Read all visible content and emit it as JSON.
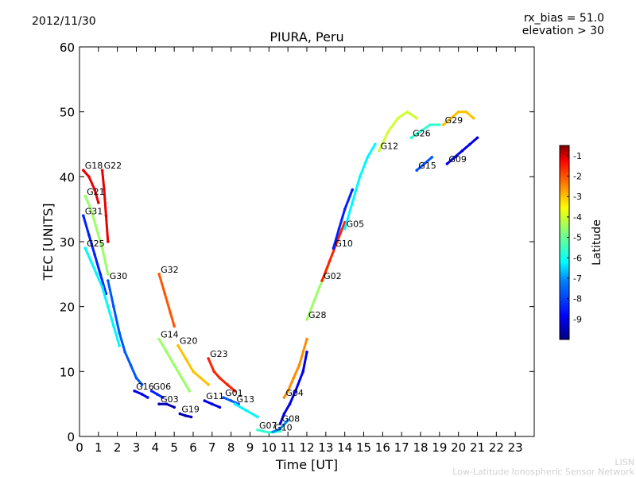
{
  "header": {
    "date": "2012/11/30",
    "rx_bias": "rx_bias = 51.0",
    "elevation": "elevation > 30"
  },
  "footer": {
    "credit_line1": "LISN",
    "credit_line2": "Low-Latitude Ionospheric Sensor Network"
  },
  "chart_data": {
    "type": "scatter",
    "title": "PIURA, Peru",
    "xlabel": "Time [UT]",
    "ylabel": "TEC [UNITS]",
    "xlim": [
      0,
      24
    ],
    "ylim": [
      0,
      60
    ],
    "x_ticks": [
      "0",
      "1",
      "2",
      "3",
      "4",
      "5",
      "6",
      "7",
      "8",
      "9",
      "10",
      "11",
      "12",
      "13",
      "14",
      "15",
      "16",
      "17",
      "18",
      "19",
      "20",
      "21",
      "22",
      "23"
    ],
    "y_ticks": [
      "0",
      "10",
      "20",
      "30",
      "40",
      "50",
      "60"
    ],
    "grid": false,
    "colorbar": {
      "label": "Latitude",
      "range": [
        -10,
        -0.5
      ],
      "ticks": [
        "-1",
        "-2",
        "-3",
        "-4",
        "-5",
        "-6",
        "-7",
        "-8",
        "-9"
      ],
      "colors": [
        "#00007f",
        "#0000ff",
        "#007fff",
        "#00ffff",
        "#7fff7f",
        "#ffff00",
        "#ff7f00",
        "#ff0000",
        "#7f0000"
      ]
    },
    "series": [
      {
        "name": "G18",
        "lat": -1.5,
        "points": [
          [
            0.2,
            41
          ],
          [
            0.5,
            40
          ],
          [
            0.8,
            38
          ],
          [
            1.0,
            36
          ]
        ]
      },
      {
        "name": "G22",
        "lat": -1.5,
        "points": [
          [
            1.2,
            41
          ],
          [
            1.3,
            38
          ],
          [
            1.4,
            34
          ],
          [
            1.5,
            30
          ]
        ]
      },
      {
        "name": "G21",
        "lat": -5.0,
        "points": [
          [
            0.3,
            37
          ],
          [
            0.6,
            35
          ],
          [
            0.9,
            32
          ],
          [
            1.2,
            29
          ],
          [
            1.5,
            25
          ]
        ]
      },
      {
        "name": "G31",
        "lat": -8.5,
        "points": [
          [
            0.2,
            34
          ],
          [
            0.5,
            31
          ],
          [
            0.8,
            28
          ],
          [
            1.1,
            25
          ],
          [
            1.4,
            22
          ]
        ]
      },
      {
        "name": "G25",
        "lat": -6.5,
        "points": [
          [
            0.3,
            29
          ],
          [
            0.6,
            27
          ],
          [
            0.9,
            25
          ],
          [
            1.2,
            23
          ],
          [
            1.5,
            20
          ],
          [
            1.8,
            17
          ],
          [
            2.1,
            14
          ]
        ]
      },
      {
        "name": "G30",
        "lat": -8.0,
        "points": [
          [
            1.5,
            24
          ],
          [
            1.8,
            20
          ],
          [
            2.1,
            16
          ],
          [
            2.4,
            13
          ],
          [
            2.7,
            11
          ],
          [
            3.0,
            9
          ],
          [
            3.3,
            8
          ]
        ]
      },
      {
        "name": "G32",
        "lat": -2.5,
        "points": [
          [
            4.2,
            25
          ],
          [
            4.5,
            22
          ],
          [
            4.8,
            19
          ],
          [
            5.0,
            17
          ]
        ]
      },
      {
        "name": "G14",
        "lat": -5.0,
        "points": [
          [
            4.2,
            15
          ],
          [
            4.6,
            13
          ],
          [
            5.0,
            11
          ],
          [
            5.4,
            9
          ],
          [
            5.8,
            7
          ]
        ]
      },
      {
        "name": "G20",
        "lat": -3.5,
        "points": [
          [
            5.2,
            14
          ],
          [
            5.6,
            12
          ],
          [
            6.0,
            10
          ],
          [
            6.4,
            9
          ],
          [
            6.8,
            8
          ]
        ]
      },
      {
        "name": "G23",
        "lat": -2.0,
        "points": [
          [
            6.8,
            12
          ],
          [
            7.1,
            10
          ],
          [
            7.4,
            9
          ],
          [
            7.8,
            8
          ],
          [
            8.2,
            7
          ]
        ]
      },
      {
        "name": "G16",
        "lat": -9.0,
        "points": [
          [
            2.9,
            7
          ],
          [
            3.3,
            6.5
          ],
          [
            3.6,
            6
          ]
        ]
      },
      {
        "name": "G06",
        "lat": -8.5,
        "points": [
          [
            3.8,
            7
          ],
          [
            4.1,
            6.5
          ],
          [
            4.4,
            6
          ]
        ]
      },
      {
        "name": "G03",
        "lat": -9.5,
        "points": [
          [
            4.2,
            5
          ],
          [
            4.6,
            5
          ],
          [
            5.0,
            4.5
          ]
        ]
      },
      {
        "name": "G19",
        "lat": -9.5,
        "points": [
          [
            5.3,
            3.5
          ],
          [
            5.6,
            3.2
          ],
          [
            5.9,
            3
          ]
        ]
      },
      {
        "name": "G11",
        "lat": -9.0,
        "points": [
          [
            6.6,
            5.5
          ],
          [
            7.0,
            5
          ],
          [
            7.4,
            4.5
          ]
        ]
      },
      {
        "name": "G01",
        "lat": -8.0,
        "points": [
          [
            7.6,
            6
          ],
          [
            8.0,
            5.5
          ],
          [
            8.4,
            5
          ]
        ]
      },
      {
        "name": "G13",
        "lat": -6.5,
        "points": [
          [
            8.2,
            5
          ],
          [
            8.8,
            4
          ],
          [
            9.4,
            3
          ]
        ]
      },
      {
        "name": "G07",
        "lat": -6.0,
        "points": [
          [
            9.4,
            1
          ],
          [
            10.0,
            0.6
          ],
          [
            10.6,
            0.8
          ]
        ]
      },
      {
        "name": "G10",
        "lat": -7.5,
        "points": [
          [
            10.2,
            0.7
          ],
          [
            10.6,
            1.2
          ],
          [
            11.0,
            2.5
          ]
        ]
      },
      {
        "name": "G08",
        "lat": -9.0,
        "points": [
          [
            10.6,
            2
          ],
          [
            10.8,
            3.5
          ],
          [
            11.1,
            5
          ],
          [
            11.4,
            7
          ],
          [
            11.8,
            10
          ],
          [
            12.0,
            13
          ]
        ]
      },
      {
        "name": "G04",
        "lat": -3.0,
        "points": [
          [
            10.8,
            6
          ],
          [
            11.0,
            7
          ],
          [
            11.3,
            9
          ],
          [
            11.6,
            11
          ],
          [
            12.0,
            15
          ]
        ]
      },
      {
        "name": "G28",
        "lat": -5.0,
        "points": [
          [
            12.0,
            18
          ],
          [
            12.4,
            21
          ],
          [
            12.8,
            24
          ],
          [
            13.1,
            26
          ]
        ]
      },
      {
        "name": "G02",
        "lat": -2.0,
        "points": [
          [
            12.8,
            24
          ],
          [
            13.2,
            27
          ],
          [
            13.6,
            30
          ],
          [
            14.0,
            33
          ]
        ]
      },
      {
        "name": "G10",
        "lat": -8.5,
        "points": [
          [
            13.4,
            29
          ],
          [
            13.7,
            32
          ],
          [
            14.0,
            35
          ],
          [
            14.4,
            38
          ]
        ]
      },
      {
        "name": "G05",
        "lat": -6.5,
        "points": [
          [
            14.0,
            32
          ],
          [
            14.4,
            36
          ],
          [
            14.8,
            40
          ],
          [
            15.2,
            43
          ],
          [
            15.6,
            45
          ]
        ]
      },
      {
        "name": "G12",
        "lat": -4.5,
        "points": [
          [
            15.8,
            44
          ],
          [
            16.3,
            47
          ],
          [
            16.8,
            49
          ],
          [
            17.3,
            50
          ],
          [
            17.8,
            49
          ]
        ]
      },
      {
        "name": "G26",
        "lat": -6.0,
        "points": [
          [
            17.5,
            46
          ],
          [
            18.0,
            47
          ],
          [
            18.5,
            48
          ],
          [
            19.0,
            48
          ]
        ]
      },
      {
        "name": "G15",
        "lat": -8.0,
        "points": [
          [
            17.8,
            41
          ],
          [
            18.2,
            42
          ],
          [
            18.6,
            43
          ]
        ]
      },
      {
        "name": "G29",
        "lat": -3.5,
        "points": [
          [
            19.2,
            48
          ],
          [
            19.6,
            49
          ],
          [
            20.0,
            50
          ],
          [
            20.4,
            50
          ],
          [
            20.8,
            49
          ]
        ]
      },
      {
        "name": "G09",
        "lat": -9.0,
        "points": [
          [
            19.4,
            42
          ],
          [
            19.8,
            43
          ],
          [
            20.2,
            44
          ],
          [
            20.6,
            45
          ],
          [
            21.0,
            46
          ]
        ]
      }
    ]
  }
}
